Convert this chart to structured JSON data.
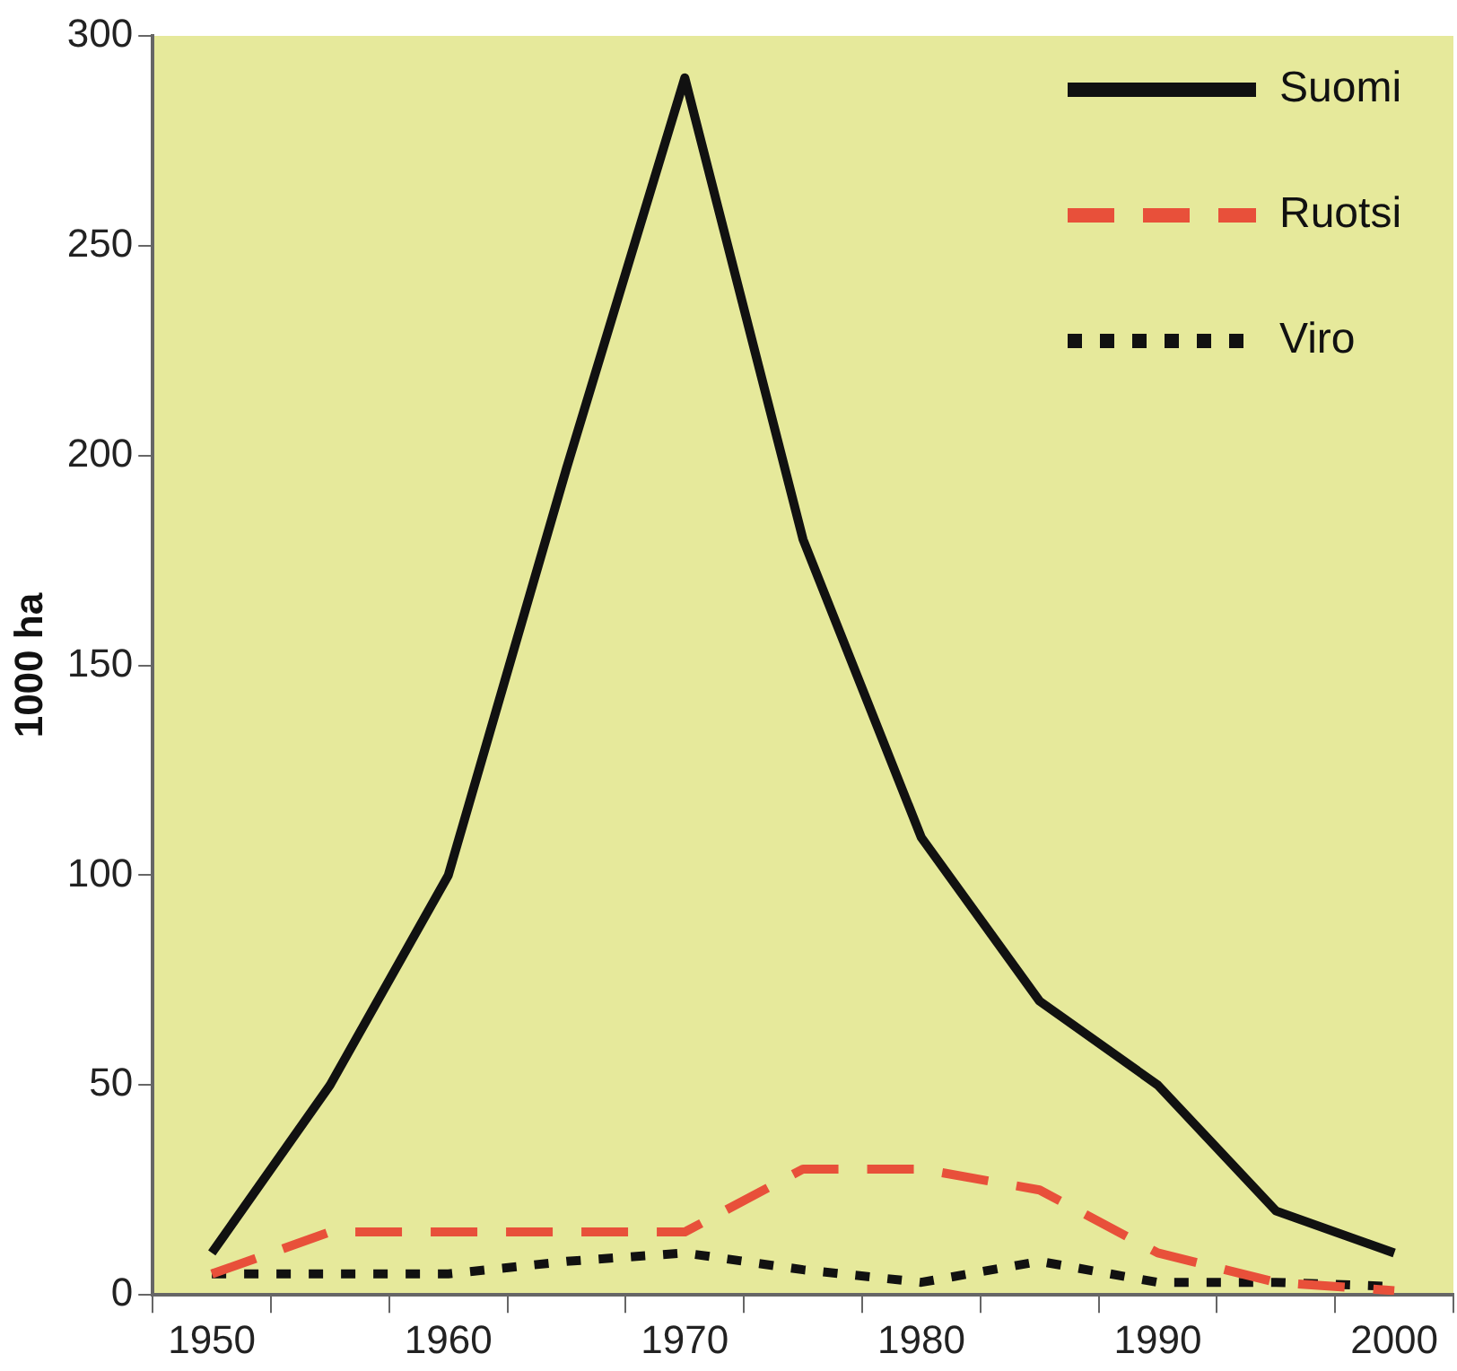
{
  "chart_data": {
    "type": "line",
    "ylabel": "1000 ha",
    "categories": [
      "1950",
      null,
      "1960",
      null,
      "1970",
      null,
      "1980",
      null,
      "1990",
      null,
      "2000"
    ],
    "series": [
      {
        "name": "Suomi",
        "color": "#111111",
        "line_style": "solid",
        "values": [
          10,
          50,
          100,
          197,
          290,
          180,
          109,
          70,
          50,
          20,
          10
        ]
      },
      {
        "name": "Ruotsi",
        "color": "#e8503a",
        "line_style": "dashed",
        "values": [
          5,
          15,
          15,
          15,
          15,
          30,
          30,
          25,
          10,
          3,
          1
        ]
      },
      {
        "name": "Viro",
        "color": "#111111",
        "line_style": "dotted",
        "values": [
          5,
          5,
          5,
          8,
          10,
          6,
          3,
          8,
          3,
          3,
          2
        ]
      }
    ],
    "ylim": [
      0,
      300
    ],
    "yticks": [
      0,
      50,
      100,
      150,
      200,
      250,
      300
    ],
    "grid": false,
    "legend": "top right",
    "marker": "none"
  }
}
